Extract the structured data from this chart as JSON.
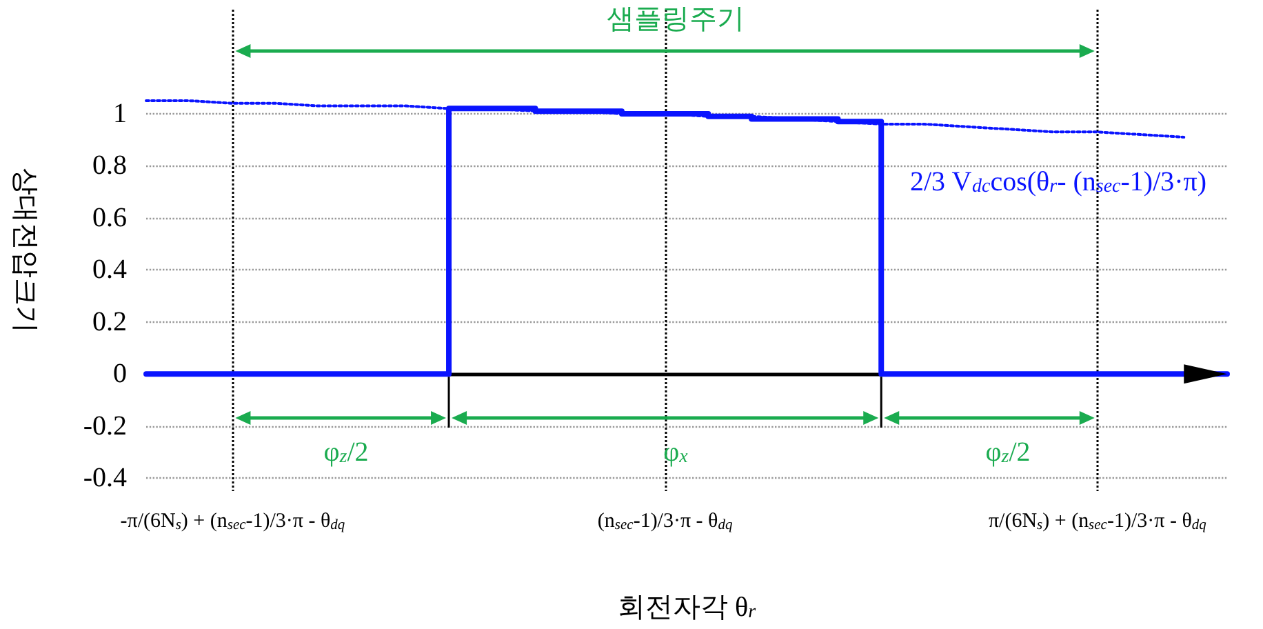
{
  "chart_data": {
    "type": "line",
    "xlabel": "회전자각 θ$_{r}$",
    "ylabel": "상대전압크기",
    "categories": [
      null,
      null,
      "-π/(6N$_{s}$) + (n$_{sec}$-1)/3·π - θ$_{dq}$",
      null,
      null,
      null,
      null,
      null,
      null,
      null,
      null,
      null,
      "(n$_{sec}$-1)/3·π - θ$_{dq}$",
      null,
      null,
      null,
      null,
      null,
      null,
      null,
      null,
      null,
      "π/(6N$_{s}$) + (n$_{sec}$-1)/3·π - θ$_{dq}$",
      null,
      null,
      null
    ],
    "ylim": [
      -0.45,
      1.4
    ],
    "yticks": [
      -0.4,
      -0.2,
      0,
      0.2,
      0.4,
      0.6,
      0.8,
      1
    ],
    "grid": true,
    "series": [
      {
        "type": "step",
        "color": "#0a14ff",
        "line_style": "solid",
        "marker": "none",
        "values": [
          0,
          0,
          0,
          0,
          0,
          0,
          0,
          1.02,
          1.02,
          1.01,
          1.01,
          1.0,
          1.0,
          0.99,
          0.98,
          0.98,
          0.97,
          0,
          0,
          0,
          0,
          0,
          0,
          0,
          0,
          0
        ]
      },
      {
        "color": "#0a14ff",
        "line_style": "dotted",
        "marker": "none",
        "values": [
          1.05,
          1.05,
          1.04,
          1.04,
          1.03,
          1.03,
          1.03,
          1.02,
          1.02,
          1.01,
          1.01,
          1.0,
          1.0,
          0.99,
          0.99,
          0.98,
          0.97,
          0.96,
          0.96,
          0.95,
          0.94,
          0.93,
          0.93,
          0.92,
          0.91,
          null
        ]
      }
    ],
    "annotations": [
      "샘플링주기",
      "φ$_{z}$/2",
      "φ$_{x}$",
      "φ$_{z}$/2",
      "2/3 V$_{dc}$cos(θ$_{r}$- (n$_{sec}$-1)/3·π)"
    ]
  }
}
